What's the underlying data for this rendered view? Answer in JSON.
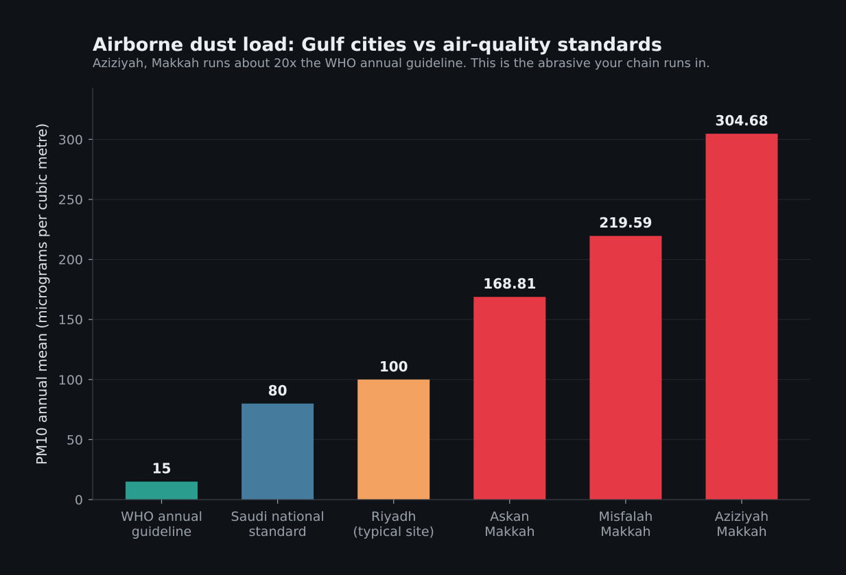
{
  "chart_data": {
    "type": "bar",
    "title": "Airborne dust load: Gulf cities vs air-quality standards",
    "subtitle": "Aziziyah, Makkah runs about 20x the WHO annual guideline. This is the abrasive your chain runs in.",
    "ylabel": "PM10 annual mean  (micrograms per cubic metre)",
    "xlabel": "",
    "ylim": [
      0,
      343
    ],
    "yticks": [
      0,
      50,
      100,
      150,
      200,
      250,
      300
    ],
    "grid": true,
    "categories": [
      [
        "WHO annual",
        "guideline"
      ],
      [
        "Saudi national",
        "standard"
      ],
      [
        "Riyadh",
        "(typical site)"
      ],
      [
        "Askan",
        "Makkah"
      ],
      [
        "Misfalah",
        "Makkah"
      ],
      [
        "Aziziyah",
        "Makkah"
      ]
    ],
    "values": [
      15,
      80,
      100,
      168.81,
      219.59,
      304.68
    ],
    "value_labels": [
      "15",
      "80",
      "100",
      "168.81",
      "219.59",
      "304.68"
    ],
    "colors": [
      "#2a9d8f",
      "#457b9d",
      "#f4a261",
      "#e63946",
      "#e63946",
      "#e63946"
    ]
  }
}
